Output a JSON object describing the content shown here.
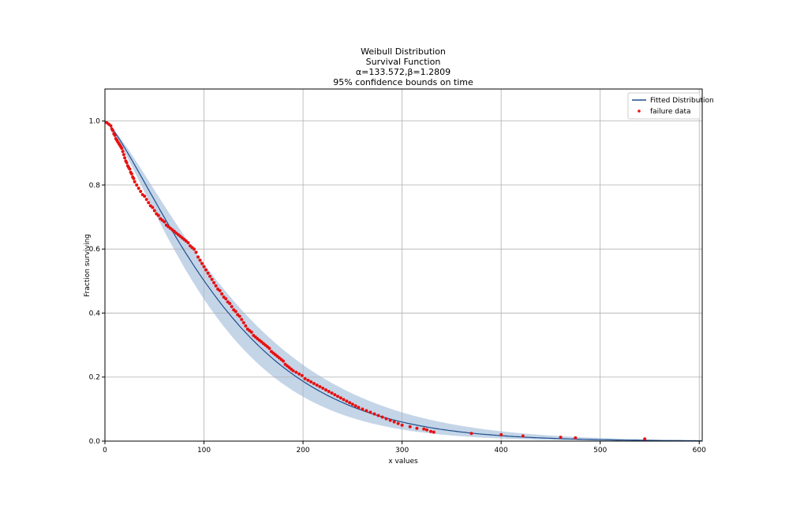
{
  "chart_data": {
    "type": "line",
    "title_lines": [
      "Weibull Distribution",
      "Survival Function",
      "α=133.572,β=1.2809",
      "95% confidence bounds on time"
    ],
    "xlabel": "x values",
    "ylabel": "Fraction surviving",
    "xlim": [
      0,
      603
    ],
    "ylim": [
      0,
      1.1
    ],
    "xticks": [
      0,
      100,
      200,
      300,
      400,
      500,
      600
    ],
    "yticks": [
      0.0,
      0.2,
      0.4,
      0.6,
      0.8,
      1.0
    ],
    "grid": true,
    "legend": {
      "position": "top-right",
      "entries": [
        "Fitted Distribution",
        "failure data"
      ]
    },
    "colors": {
      "fitted": "#1f4e8c",
      "band": "#c4d5e8",
      "points": "#e81010",
      "grid": "#b0b0b0"
    },
    "fitted": {
      "alpha": 133.572,
      "beta": 1.2809
    },
    "confidence_band": {
      "level": 0.95,
      "lower_time_factor": 0.88,
      "upper_time_factor": 1.13
    },
    "series": [
      {
        "name": "failure data",
        "x": [
          2,
          4,
          6,
          7,
          8,
          9,
          10,
          11,
          12,
          13,
          14,
          15,
          16,
          17,
          18,
          19,
          20,
          21,
          22,
          23,
          24,
          25,
          26,
          27,
          28,
          29,
          30,
          32,
          34,
          36,
          38,
          40,
          42,
          44,
          46,
          48,
          50,
          52,
          54,
          56,
          58,
          60,
          62,
          64,
          66,
          68,
          70,
          72,
          74,
          76,
          78,
          80,
          82,
          84,
          86,
          88,
          90,
          92,
          94,
          96,
          98,
          100,
          102,
          104,
          106,
          108,
          110,
          112,
          114,
          116,
          118,
          120,
          122,
          124,
          126,
          128,
          130,
          132,
          134,
          136,
          138,
          140,
          142,
          144,
          146,
          148,
          150,
          152,
          154,
          156,
          158,
          160,
          162,
          164,
          166,
          168,
          170,
          172,
          174,
          176,
          178,
          180,
          182,
          184,
          186,
          188,
          190,
          193,
          196,
          199,
          202,
          205,
          208,
          211,
          214,
          217,
          220,
          223,
          226,
          229,
          232,
          235,
          238,
          241,
          244,
          247,
          250,
          253,
          256,
          260,
          264,
          268,
          272,
          276,
          280,
          284,
          288,
          292,
          296,
          300,
          308,
          315,
          322,
          325,
          329,
          332,
          370,
          400,
          422,
          460,
          475,
          545
        ],
        "y": [
          0.995,
          0.99,
          0.985,
          0.975,
          0.97,
          0.96,
          0.955,
          0.945,
          0.94,
          0.935,
          0.93,
          0.925,
          0.92,
          0.915,
          0.905,
          0.895,
          0.885,
          0.875,
          0.87,
          0.86,
          0.855,
          0.85,
          0.84,
          0.835,
          0.825,
          0.82,
          0.81,
          0.8,
          0.79,
          0.78,
          0.77,
          0.765,
          0.755,
          0.745,
          0.735,
          0.73,
          0.72,
          0.71,
          0.705,
          0.695,
          0.69,
          0.685,
          0.675,
          0.67,
          0.665,
          0.66,
          0.655,
          0.65,
          0.645,
          0.64,
          0.635,
          0.63,
          0.625,
          0.62,
          0.61,
          0.605,
          0.6,
          0.59,
          0.575,
          0.565,
          0.555,
          0.545,
          0.535,
          0.525,
          0.515,
          0.505,
          0.495,
          0.485,
          0.475,
          0.47,
          0.46,
          0.45,
          0.445,
          0.435,
          0.43,
          0.42,
          0.41,
          0.405,
          0.395,
          0.39,
          0.38,
          0.37,
          0.36,
          0.35,
          0.345,
          0.34,
          0.33,
          0.325,
          0.32,
          0.315,
          0.31,
          0.305,
          0.3,
          0.295,
          0.29,
          0.28,
          0.275,
          0.27,
          0.265,
          0.26,
          0.255,
          0.25,
          0.24,
          0.235,
          0.23,
          0.225,
          0.22,
          0.215,
          0.21,
          0.205,
          0.195,
          0.19,
          0.185,
          0.18,
          0.175,
          0.17,
          0.165,
          0.16,
          0.155,
          0.15,
          0.145,
          0.14,
          0.135,
          0.13,
          0.125,
          0.12,
          0.115,
          0.11,
          0.105,
          0.1,
          0.095,
          0.09,
          0.085,
          0.08,
          0.075,
          0.07,
          0.065,
          0.06,
          0.055,
          0.05,
          0.045,
          0.04,
          0.038,
          0.035,
          0.03,
          0.028,
          0.024,
          0.02,
          0.016,
          0.012,
          0.01,
          0.007
        ]
      }
    ]
  }
}
